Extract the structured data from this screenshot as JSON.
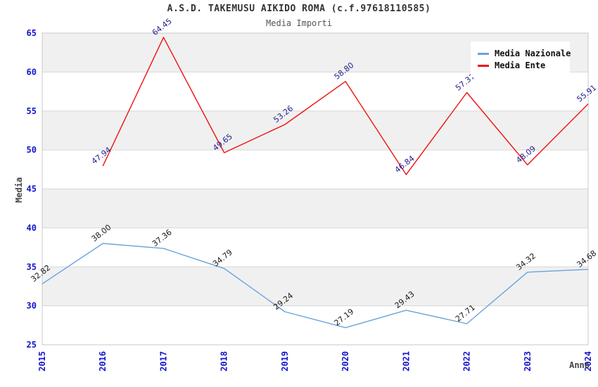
{
  "chart_data": {
    "type": "line",
    "title": "A.S.D. TAKEMUSU AIKIDO ROMA (c.f.97618110585)",
    "subtitle": "Media Importi",
    "xlabel": "Anno",
    "ylabel": "Media",
    "categories": [
      "2015",
      "2016",
      "2017",
      "2018",
      "2019",
      "2020",
      "2021",
      "2022",
      "2023",
      "2024"
    ],
    "series": [
      {
        "name": "Media Nazionale",
        "color": "#69a3dc",
        "label_color": "#1a1a1a",
        "values": [
          32.82,
          38.0,
          37.36,
          34.79,
          29.24,
          27.19,
          29.43,
          27.71,
          34.32,
          34.68
        ]
      },
      {
        "name": "Media Ente",
        "color": "#ee1111",
        "label_color": "#1f1f8f",
        "values": [
          null,
          47.94,
          64.45,
          49.65,
          53.26,
          58.8,
          46.84,
          57.37,
          48.09,
          55.91
        ]
      }
    ],
    "ylim": [
      25,
      65
    ],
    "y_ticks": [
      25,
      30,
      35,
      40,
      45,
      50,
      55,
      60,
      65
    ],
    "grid": true,
    "legend_position": "top-right",
    "colors": {
      "tick_label": "#1414cc",
      "band": "#f0f0f0",
      "grid_line": "#d8d8d8",
      "plot_border": "#c8c8c8"
    }
  }
}
